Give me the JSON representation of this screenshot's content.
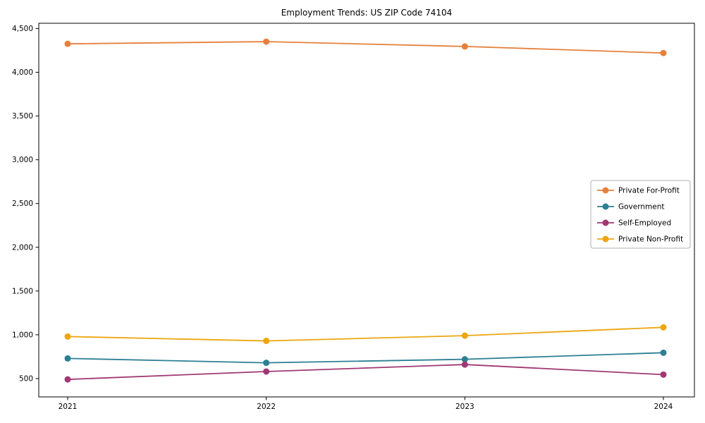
{
  "chart_data": {
    "type": "line",
    "title": "Employment Trends: US ZIP Code 74104",
    "xlabel": "",
    "ylabel": "",
    "categories": [
      "2021",
      "2022",
      "2023",
      "2024"
    ],
    "series": [
      {
        "name": "Private For-Profit",
        "color": "#e5813d",
        "values": [
          4325,
          4350,
          4295,
          4220
        ]
      },
      {
        "name": "Government",
        "color": "#2d7f93",
        "values": [
          730,
          680,
          720,
          795
        ]
      },
      {
        "name": "Self-Employed",
        "color": "#a03873",
        "values": [
          490,
          580,
          660,
          545
        ]
      },
      {
        "name": "Private Non-Profit",
        "color": "#eda60f",
        "values": [
          980,
          930,
          990,
          1085
        ]
      }
    ],
    "ylim": [
      290,
      4560
    ],
    "yticks": [
      500,
      1000,
      1500,
      2000,
      2500,
      3000,
      3500,
      4000,
      4500
    ],
    "grid": false,
    "legend_position": "center right",
    "marker": "circle",
    "axis_color": "#000000",
    "legend_border_color": "#b0b0b0"
  }
}
